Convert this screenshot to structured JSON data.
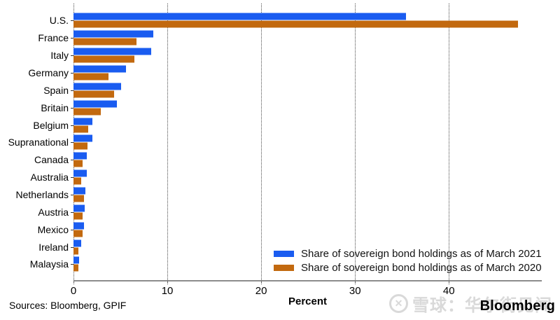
{
  "chart_data": {
    "type": "bar",
    "orientation": "horizontal",
    "categories": [
      "U.S.",
      "France",
      "Italy",
      "Germany",
      "Spain",
      "Britain",
      "Belgium",
      "Supranational",
      "Canada",
      "Australia",
      "Netherlands",
      "Austria",
      "Mexico",
      "Ireland",
      "Malaysia"
    ],
    "series": [
      {
        "name": "Share of sovereign bond holdings as of March 2021",
        "color": "#1a5cf0",
        "values": [
          35.4,
          8.5,
          8.3,
          5.6,
          5.1,
          4.6,
          2.0,
          2.0,
          1.4,
          1.4,
          1.3,
          1.2,
          1.1,
          0.8,
          0.6
        ]
      },
      {
        "name": "Share of sovereign bond holdings as of March 2020",
        "color": "#c2690f",
        "values": [
          47.4,
          6.7,
          6.5,
          3.7,
          4.3,
          2.9,
          1.6,
          1.5,
          1.0,
          0.8,
          1.1,
          1.0,
          1.0,
          0.5,
          0.5
        ]
      }
    ],
    "xlabel": "Percent",
    "xticks": [
      0,
      10,
      20,
      30,
      40
    ],
    "xlim": [
      0,
      49.9
    ],
    "grid": "vertical-dotted",
    "legend_position": "inside-bottom-right"
  },
  "footer": {
    "sources": "Sources: Bloomberg, GPIF",
    "brand": "Bloomberg",
    "watermark_text": "雪球：华尔街见闻",
    "watermark_glyph": "✕"
  }
}
